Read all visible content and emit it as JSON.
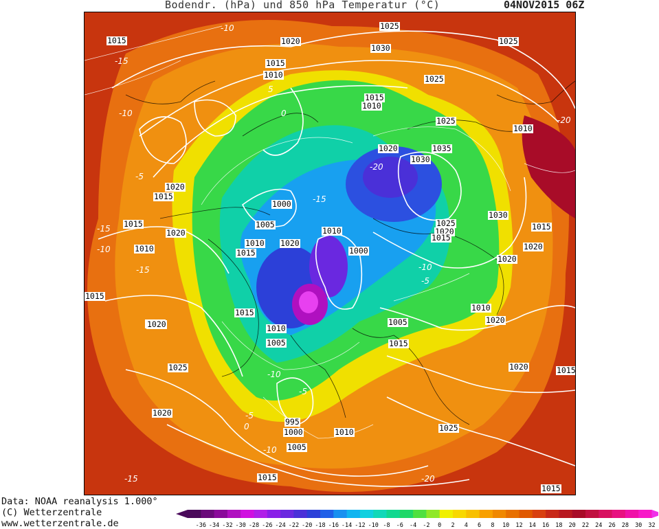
{
  "header": {
    "title": "Bodendr. (hPa) und 850 hPa Temperatur (°C)",
    "datetime": "04NOV2015 06Z"
  },
  "footer": {
    "data_source": "Data: NOAA reanalysis 1.000°",
    "copyright": "(C) Wetterzentrale",
    "website": "www.wetterzentrale.de"
  },
  "legend": {
    "ticks": [
      "-36",
      "-34",
      "-32",
      "-30",
      "-28",
      "-26",
      "-24",
      "-22",
      "-20",
      "-18",
      "-16",
      "-14",
      "-12",
      "-10",
      "-8",
      "-6",
      "-4",
      "-2",
      "0",
      "2",
      "4",
      "6",
      "8",
      "10",
      "12",
      "14",
      "16",
      "18",
      "20",
      "22",
      "24",
      "26",
      "28",
      "30",
      "32"
    ],
    "colors": [
      "#4a0a5a",
      "#6a0a7a",
      "#8a0a9a",
      "#b010c0",
      "#d010e0",
      "#b020e8",
      "#8a20e8",
      "#6a28e0",
      "#4a30d8",
      "#2c40d8",
      "#2060e8",
      "#1890f0",
      "#10b4f0",
      "#10d0e0",
      "#10d8b8",
      "#10d890",
      "#20d868",
      "#50e040",
      "#90e828",
      "#f0f000",
      "#f8d800",
      "#f8c000",
      "#f8a000",
      "#f08800",
      "#e87000",
      "#e05800",
      "#d84010",
      "#c82818",
      "#b81820",
      "#a80c28",
      "#c01040",
      "#d81060",
      "#e81080",
      "#f010a8",
      "#f818c8"
    ],
    "arrow_left_color": "#4a0a5a",
    "arrow_right_color": "#f030e8"
  },
  "map": {
    "pressure_labels": [
      "1015",
      "1020",
      "1025",
      "1030",
      "1025",
      "1015",
      "1010",
      "1015",
      "1010",
      "1025",
      "1010",
      "1020",
      "1035",
      "1030",
      "1025",
      "1015",
      "1020",
      "1000",
      "1005",
      "1010",
      "1015",
      "1010",
      "1020",
      "1030",
      "1025",
      "1020",
      "1015",
      "1000",
      "1020",
      "1015",
      "1010",
      "1015",
      "1005",
      "1010",
      "1005",
      "1010",
      "1015",
      "1020",
      "1010",
      "1020",
      "1025",
      "1015",
      "1020",
      "995",
      "1000",
      "1010",
      "1025",
      "1005",
      "1015",
      "1015",
      "1015",
      "1020",
      "1020",
      "1015",
      "1020"
    ],
    "temperature_labels": [
      "-10",
      "-15",
      "-10",
      "-5",
      "5",
      "-15",
      "-20",
      "0",
      "-10",
      "-5",
      "-10",
      "-15",
      "-15",
      "-20",
      "-5",
      "-5",
      "0",
      "-10",
      "-10",
      "-15",
      "-20"
    ]
  }
}
